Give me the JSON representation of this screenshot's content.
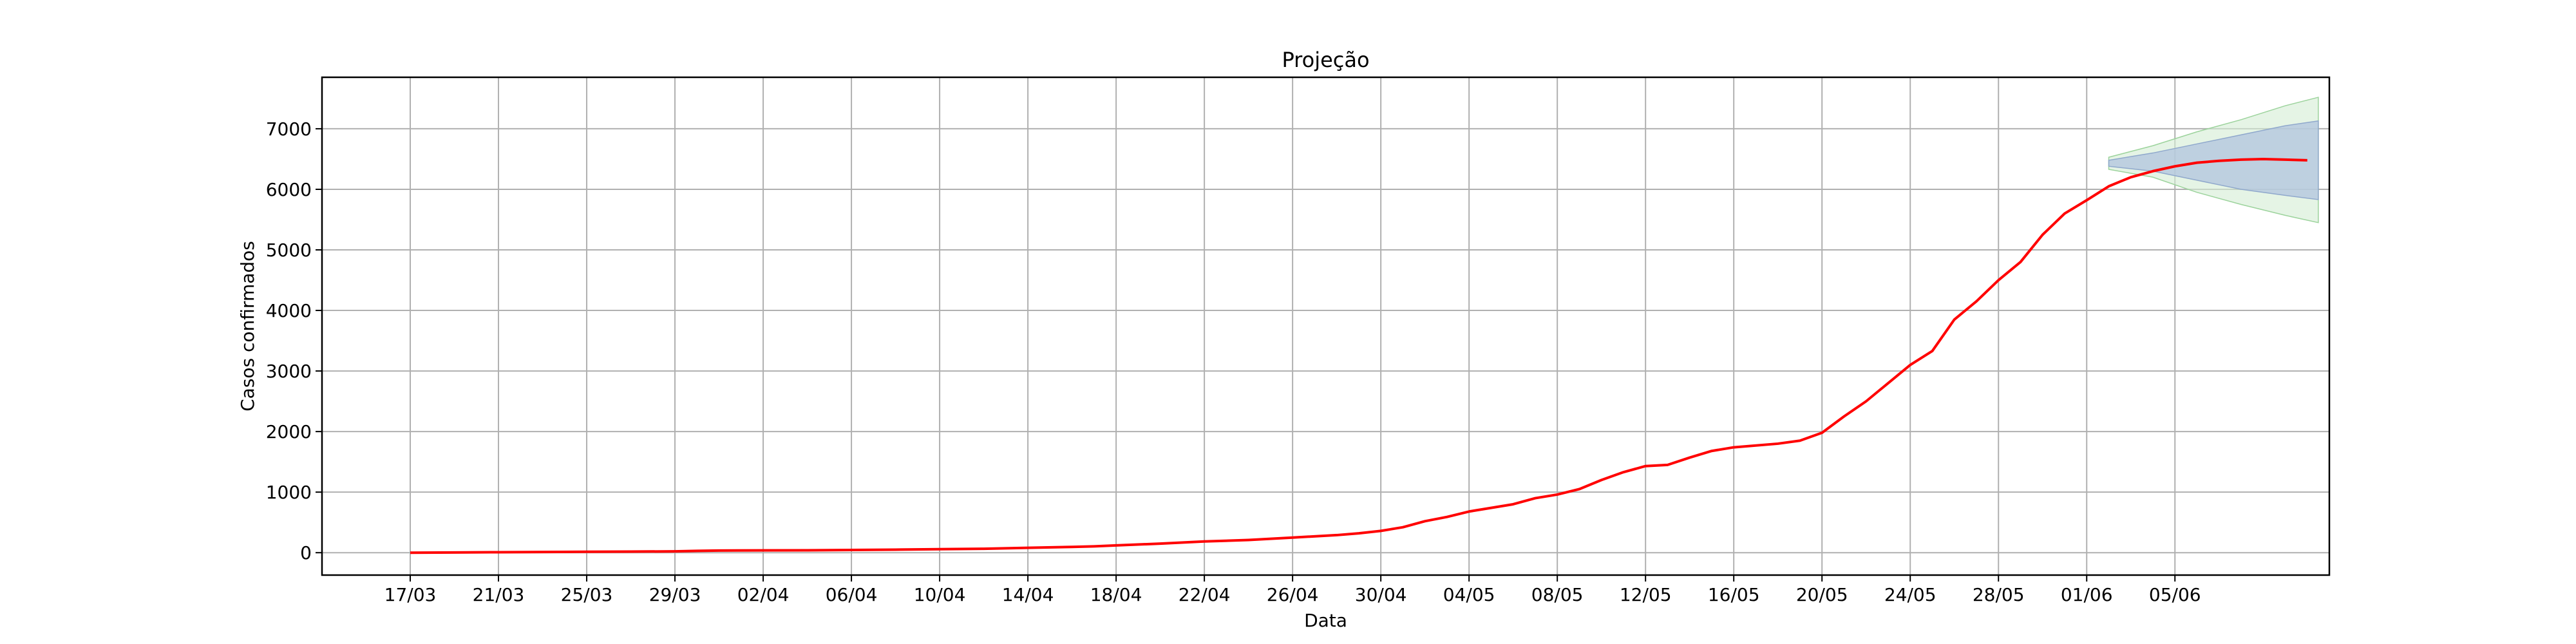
{
  "chart_data": {
    "type": "line",
    "title": "Projeção",
    "xlabel": "Data",
    "ylabel": "Casos confirmados",
    "xlim": [
      -4,
      87
    ],
    "ylim": [
      -370,
      7850
    ],
    "grid": true,
    "x_ticks": [
      {
        "day": 0,
        "label": "17/03"
      },
      {
        "day": 4,
        "label": "21/03"
      },
      {
        "day": 8,
        "label": "25/03"
      },
      {
        "day": 12,
        "label": "29/03"
      },
      {
        "day": 16,
        "label": "02/04"
      },
      {
        "day": 20,
        "label": "06/04"
      },
      {
        "day": 24,
        "label": "10/04"
      },
      {
        "day": 28,
        "label": "14/04"
      },
      {
        "day": 32,
        "label": "18/04"
      },
      {
        "day": 36,
        "label": "22/04"
      },
      {
        "day": 40,
        "label": "26/04"
      },
      {
        "day": 44,
        "label": "30/04"
      },
      {
        "day": 48,
        "label": "04/05"
      },
      {
        "day": 52,
        "label": "08/05"
      },
      {
        "day": 56,
        "label": "12/05"
      },
      {
        "day": 60,
        "label": "16/05"
      },
      {
        "day": 64,
        "label": "20/05"
      },
      {
        "day": 68,
        "label": "24/05"
      },
      {
        "day": 72,
        "label": "28/05"
      },
      {
        "day": 76,
        "label": "01/06"
      },
      {
        "day": 80,
        "label": "05/06"
      }
    ],
    "y_ticks": [
      0,
      1000,
      2000,
      3000,
      4000,
      5000,
      6000,
      7000
    ],
    "series": [
      {
        "color": "#ff0000",
        "points": [
          [
            0,
            0
          ],
          [
            2,
            3
          ],
          [
            4,
            8
          ],
          [
            6,
            12
          ],
          [
            8,
            15
          ],
          [
            10,
            18
          ],
          [
            12,
            22
          ],
          [
            13,
            30
          ],
          [
            14,
            35
          ],
          [
            16,
            38
          ],
          [
            18,
            40
          ],
          [
            20,
            45
          ],
          [
            22,
            50
          ],
          [
            24,
            58
          ],
          [
            26,
            65
          ],
          [
            28,
            80
          ],
          [
            30,
            95
          ],
          [
            31,
            105
          ],
          [
            32,
            120
          ],
          [
            34,
            150
          ],
          [
            36,
            185
          ],
          [
            38,
            210
          ],
          [
            40,
            250
          ],
          [
            42,
            290
          ],
          [
            43,
            320
          ],
          [
            44,
            360
          ],
          [
            45,
            420
          ],
          [
            46,
            520
          ],
          [
            47,
            590
          ],
          [
            48,
            680
          ],
          [
            49,
            740
          ],
          [
            50,
            800
          ],
          [
            51,
            900
          ],
          [
            52,
            960
          ],
          [
            53,
            1050
          ],
          [
            54,
            1200
          ],
          [
            55,
            1330
          ],
          [
            56,
            1430
          ],
          [
            57,
            1450
          ],
          [
            58,
            1570
          ],
          [
            59,
            1680
          ],
          [
            60,
            1740
          ],
          [
            62,
            1800
          ],
          [
            63,
            1850
          ],
          [
            64,
            1980
          ],
          [
            65,
            2250
          ],
          [
            66,
            2500
          ],
          [
            67,
            2800
          ],
          [
            68,
            3100
          ],
          [
            69,
            3330
          ],
          [
            70,
            3850
          ],
          [
            71,
            4150
          ],
          [
            72,
            4500
          ],
          [
            73,
            4800
          ],
          [
            74,
            5250
          ],
          [
            75,
            5600
          ],
          [
            76,
            5820
          ],
          [
            77,
            6050
          ],
          [
            78,
            6200
          ],
          [
            79,
            6300
          ],
          [
            80,
            6380
          ],
          [
            81,
            6440
          ],
          [
            82,
            6470
          ],
          [
            83,
            6490
          ],
          [
            84,
            6500
          ],
          [
            85,
            6490
          ],
          [
            86,
            6480
          ]
        ]
      }
    ],
    "projection": {
      "x": [
        77,
        79,
        81,
        83,
        85,
        86.5
      ],
      "center": [
        6420,
        6460,
        6490,
        6500,
        6490,
        6480
      ],
      "inner_band": {
        "color": "#b0c4de",
        "lower": [
          6380,
          6300,
          6150,
          6000,
          5900,
          5830
        ],
        "upper": [
          6480,
          6600,
          6750,
          6900,
          7050,
          7130
        ]
      },
      "outer_band": {
        "color": "#d4ecd4",
        "lower": [
          6330,
          6200,
          5950,
          5750,
          5570,
          5450
        ],
        "upper": [
          6530,
          6720,
          6950,
          7150,
          7380,
          7520
        ]
      }
    }
  }
}
